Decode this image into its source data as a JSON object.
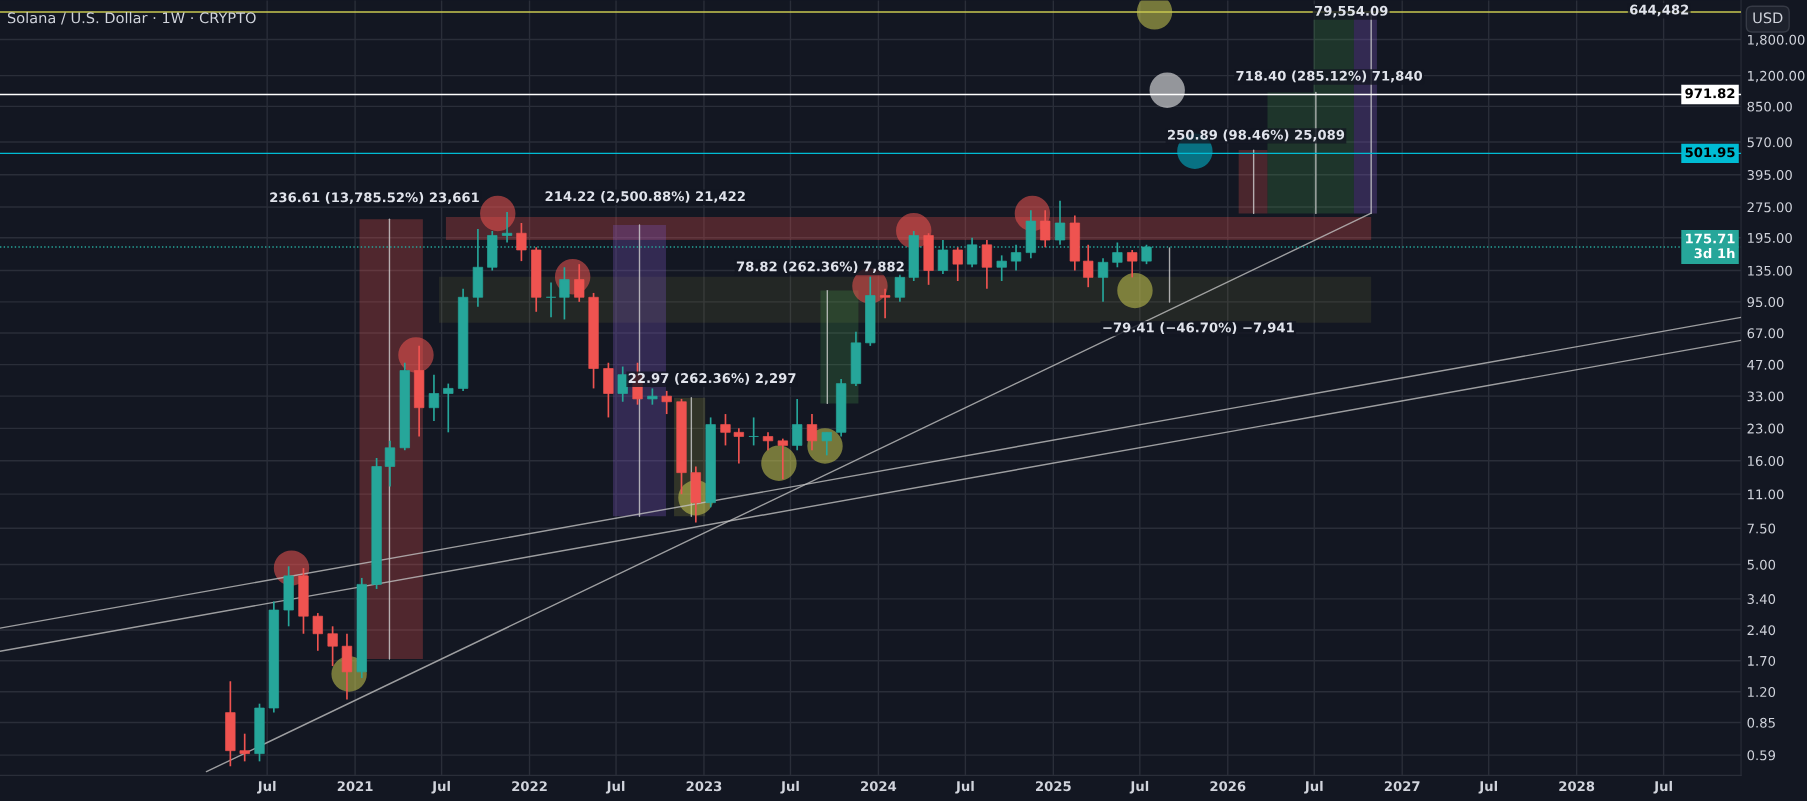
{
  "chart_data": {
    "type": "candlestick",
    "title": "Solana / U.S. Dollar · 1W · CRYPTO",
    "x": [
      "2020-04-15",
      "2020-05-15",
      "2020-06-15",
      "2020-07-15",
      "2020-08-15",
      "2020-09-15",
      "2020-10-15",
      "2020-11-15",
      "2020-12-15",
      "2021-01-15",
      "2021-02-15",
      "2021-03-15",
      "2021-04-15",
      "2021-05-15",
      "2021-06-15",
      "2021-07-15",
      "2021-08-15",
      "2021-09-15",
      "2021-10-15",
      "2021-11-15",
      "2021-12-15",
      "2022-01-15",
      "2022-02-15",
      "2022-03-15",
      "2022-04-15",
      "2022-05-15",
      "2022-06-15",
      "2022-07-15",
      "2022-08-15",
      "2022-09-15",
      "2022-10-15",
      "2022-11-15",
      "2022-12-15",
      "2023-01-15",
      "2023-02-15",
      "2023-03-15",
      "2023-04-15",
      "2023-05-15",
      "2023-06-15",
      "2023-07-15",
      "2023-08-15",
      "2023-09-15",
      "2023-10-15",
      "2023-11-15",
      "2023-12-15",
      "2024-01-15",
      "2024-02-15",
      "2024-03-15",
      "2024-04-15",
      "2024-05-15",
      "2024-06-15",
      "2024-07-15",
      "2024-08-15",
      "2024-09-15",
      "2024-10-15",
      "2024-11-15",
      "2024-12-15",
      "2025-01-15",
      "2025-02-15",
      "2025-03-15",
      "2025-04-15",
      "2025-05-15",
      "2025-06-15",
      "2025-07-15"
    ],
    "ohlc": [
      [
        0.95,
        1.35,
        0.52,
        0.62
      ],
      [
        0.62,
        0.75,
        0.55,
        0.6
      ],
      [
        0.6,
        1.05,
        0.55,
        1.0
      ],
      [
        1.0,
        3.3,
        0.95,
        3.0
      ],
      [
        3.0,
        4.9,
        2.5,
        4.4
      ],
      [
        4.4,
        4.8,
        2.3,
        2.8
      ],
      [
        2.8,
        2.9,
        1.9,
        2.3
      ],
      [
        2.3,
        2.5,
        1.6,
        2.0
      ],
      [
        2.0,
        2.3,
        1.1,
        1.5
      ],
      [
        1.5,
        4.3,
        1.4,
        4.0
      ],
      [
        4.0,
        16.5,
        3.8,
        15
      ],
      [
        15,
        20,
        12,
        18.5
      ],
      [
        18.5,
        48,
        18,
        44
      ],
      [
        44,
        58,
        21,
        29
      ],
      [
        29,
        42,
        25,
        34
      ],
      [
        34,
        38,
        22,
        36
      ],
      [
        36,
        110,
        35,
        100
      ],
      [
        100,
        215,
        90,
        140
      ],
      [
        140,
        210,
        135,
        200
      ],
      [
        200,
        260,
        185,
        205
      ],
      [
        205,
        230,
        150,
        170
      ],
      [
        170,
        175,
        85,
        100
      ],
      [
        100,
        118,
        80,
        100
      ],
      [
        100,
        140,
        78,
        122
      ],
      [
        122,
        145,
        95,
        100
      ],
      [
        100,
        105,
        36,
        45
      ],
      [
        45,
        48,
        26,
        34
      ],
      [
        34,
        46,
        31,
        42
      ],
      [
        42,
        48,
        30,
        32
      ],
      [
        32,
        36,
        30,
        33
      ],
      [
        33,
        35,
        27,
        31
      ],
      [
        31,
        32,
        11,
        14
      ],
      [
        14,
        15,
        8,
        10
      ],
      [
        10,
        26,
        9.5,
        24
      ],
      [
        24,
        27,
        19,
        22
      ],
      [
        22,
        23,
        15.5,
        21
      ],
      [
        21,
        26,
        19,
        21
      ],
      [
        21,
        22,
        18,
        20
      ],
      [
        20,
        20.5,
        13,
        19
      ],
      [
        19,
        32,
        18,
        24
      ],
      [
        24,
        27,
        18,
        20
      ],
      [
        20,
        22,
        17,
        22
      ],
      [
        22,
        40,
        21,
        38
      ],
      [
        38,
        68,
        37,
        60
      ],
      [
        60,
        126,
        58,
        102
      ],
      [
        102,
        110,
        79,
        100
      ],
      [
        100,
        130,
        95,
        125
      ],
      [
        125,
        210,
        120,
        200
      ],
      [
        200,
        205,
        115,
        135
      ],
      [
        135,
        190,
        130,
        170
      ],
      [
        170,
        175,
        120,
        145
      ],
      [
        145,
        195,
        140,
        180
      ],
      [
        180,
        190,
        110,
        140
      ],
      [
        140,
        160,
        120,
        150
      ],
      [
        150,
        180,
        135,
        165
      ],
      [
        165,
        265,
        155,
        235
      ],
      [
        235,
        265,
        175,
        190
      ],
      [
        190,
        295,
        180,
        230
      ],
      [
        230,
        250,
        135,
        150
      ],
      [
        150,
        180,
        112,
        125
      ],
      [
        125,
        155,
        95,
        148
      ],
      [
        148,
        185,
        140,
        165
      ],
      [
        165,
        170,
        125,
        150
      ],
      [
        150,
        180,
        145,
        175.71
      ]
    ],
    "colors": [
      "#ef5350",
      "#ef5350",
      "#26a69a",
      "#26a69a",
      "#26a69a",
      "#ef5350",
      "#ef5350",
      "#ef5350",
      "#ef5350",
      "#26a69a",
      "#26a69a",
      "#26a69a",
      "#26a69a",
      "#ef5350",
      "#26a69a",
      "#26a69a",
      "#26a69a",
      "#26a69a",
      "#26a69a",
      "#26a69a",
      "#ef5350",
      "#ef5350",
      "#26a69a",
      "#26a69a",
      "#ef5350",
      "#ef5350",
      "#ef5350",
      "#26a69a",
      "#ef5350",
      "#26a69a",
      "#ef5350",
      "#ef5350",
      "#ef5350",
      "#26a69a",
      "#ef5350",
      "#ef5350",
      "#26a69a",
      "#ef5350",
      "#ef5350",
      "#26a69a",
      "#ef5350",
      "#26a69a",
      "#26a69a",
      "#26a69a",
      "#26a69a",
      "#ef5350",
      "#26a69a",
      "#26a69a",
      "#ef5350",
      "#26a69a",
      "#ef5350",
      "#26a69a",
      "#ef5350",
      "#26a69a",
      "#26a69a",
      "#26a69a",
      "#ef5350",
      "#26a69a",
      "#ef5350",
      "#ef5350",
      "#26a69a",
      "#26a69a",
      "#ef5350",
      "#26a69a"
    ],
    "series": [
      {
        "type": "line",
        "color": "#c0c0c0",
        "x": [
          "2018-12-20",
          "2028-12-10"
        ],
        "values": [
          2.45,
          79.8
        ]
      },
      {
        "type": "line",
        "color": "#c0c0c0",
        "x": [
          "2018-12-20",
          "2028-12-10"
        ],
        "values": [
          1.89,
          61.7
        ]
      },
      {
        "type": "line",
        "color": "#c0c0c0",
        "x": [
          "2020-02-25",
          "2026-10-27"
        ],
        "values": [
          0.49,
          256
        ]
      }
    ],
    "log": true,
    "ylim": [
      0.47,
      2790
    ],
    "yticks": [
      {
        "value": 0.59,
        "label": "0.59"
      },
      {
        "value": 0.85,
        "label": "0.85"
      },
      {
        "value": 1.2,
        "label": "1.20"
      },
      {
        "value": 1.7,
        "label": "1.70"
      },
      {
        "value": 2.4,
        "label": "2.40"
      },
      {
        "value": 3.4,
        "label": "3.40"
      },
      {
        "value": 5,
        "label": "5.00"
      },
      {
        "value": 7.5,
        "label": "7.50"
      },
      {
        "value": 11,
        "label": "11.00"
      },
      {
        "value": 16,
        "label": "16.00"
      },
      {
        "value": 23,
        "label": "23.00"
      },
      {
        "value": 33,
        "label": "33.00"
      },
      {
        "value": 47,
        "label": "47.00"
      },
      {
        "value": 67,
        "label": "67.00"
      },
      {
        "value": 95,
        "label": "95.00"
      },
      {
        "value": 135,
        "label": "135.00"
      },
      {
        "value": 195,
        "label": "195.00"
      },
      {
        "value": 275,
        "label": "275.00"
      },
      {
        "value": 395,
        "label": "395.00"
      },
      {
        "value": 570,
        "label": "570.00"
      },
      {
        "value": 850,
        "label": "850.00"
      },
      {
        "value": 1200,
        "label": "1,200.00"
      },
      {
        "value": 1800,
        "label": "1,800.00"
      }
    ],
    "xlim": [
      "2018-12-20",
      "2028-12-10"
    ],
    "xticks": [
      {
        "value": "2020-07-01",
        "label": "Jul"
      },
      {
        "value": "2021-01-01",
        "label": "2021"
      },
      {
        "value": "2021-07-01",
        "label": "Jul"
      },
      {
        "value": "2022-01-01",
        "label": "2022"
      },
      {
        "value": "2022-07-01",
        "label": "Jul"
      },
      {
        "value": "2023-01-01",
        "label": "2023"
      },
      {
        "value": "2023-07-01",
        "label": "Jul"
      },
      {
        "value": "2024-01-01",
        "label": "2024"
      },
      {
        "value": "2024-07-01",
        "label": "Jul"
      },
      {
        "value": "2025-01-01",
        "label": "2025"
      },
      {
        "value": "2025-07-01",
        "label": "Jul"
      },
      {
        "value": "2026-01-01",
        "label": "2026"
      },
      {
        "value": "2026-07-01",
        "label": "Jul"
      },
      {
        "value": "2027-01-01",
        "label": "2027"
      },
      {
        "value": "2027-07-01",
        "label": "Jul"
      },
      {
        "value": "2028-01-01",
        "label": "2028"
      },
      {
        "value": "2028-07-01",
        "label": "Jul"
      }
    ],
    "grid": true,
    "ref_lines": [
      {
        "axis": "y",
        "value": 971.82,
        "label": "971.82",
        "color": "#ffffff",
        "line_style": "solid"
      },
      {
        "axis": "y",
        "value": 501.95,
        "label": "501.95",
        "color": "#00bcd4",
        "line_style": "solid"
      },
      {
        "axis": "y",
        "value": 175.71,
        "label": "175.71\n3d 1h",
        "color": "#26a69a",
        "line_style": "dotted"
      },
      {
        "axis": "y",
        "value": 2450,
        "color": "#c8c850",
        "line_style": "solid"
      }
    ],
    "annotations": [
      "USD",
      "236.61 (13,785.52%) 23,661",
      "214.22 (2,500.88%) 21,422",
      "78.82 (262.36%) 7,882",
      "22.97 (262.36%) 2,297",
      "−79.41 (−46.70%) −7,941",
      {
        "text": "250.89 (98.46%) 25,089",
        "x": "2026-03-01",
        "y": 501.95
      },
      {
        "text": "718.40 (285.12%) 71,840",
        "x": "2026-08-01",
        "y": 971.82
      },
      {
        "text": "79,554.09",
        "x": "2026-10-27",
        "y": 2450
      },
      "644,482"
    ]
  }
}
